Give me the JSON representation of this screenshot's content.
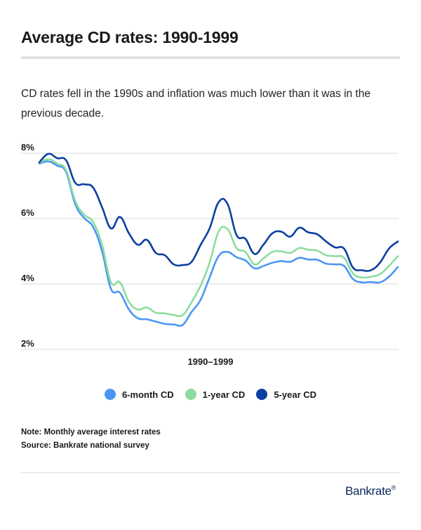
{
  "header": {
    "title": "Average CD rates: 1990-1999",
    "subtitle": "CD rates fell in the 1990s and inflation was much lower than it was in the previous decade."
  },
  "footer": {
    "note": "Note: Monthly average interest rates",
    "source": "Source: Bankrate national survey",
    "brand": "Bankrate",
    "brand_mark": "®"
  },
  "colors": {
    "six_month": "#4a97f3",
    "one_year": "#8cdca0",
    "five_year": "#0b3fa0",
    "gridline": "#d9d9d9"
  },
  "chart_data": {
    "type": "line",
    "title": "Average CD rates: 1990-1999",
    "xlabel": "1990–1999",
    "ylabel": "",
    "ylim": [
      2,
      8
    ],
    "yticks": [
      "8%",
      "6%",
      "4%",
      "2%"
    ],
    "ytick_values": [
      8,
      6,
      4,
      2
    ],
    "grid": true,
    "legend_position": "bottom",
    "x": [
      1990.0,
      1990.25,
      1990.5,
      1990.75,
      1991.0,
      1991.25,
      1991.5,
      1991.75,
      1992.0,
      1992.25,
      1992.5,
      1992.75,
      1993.0,
      1993.25,
      1993.5,
      1993.75,
      1994.0,
      1994.25,
      1994.5,
      1994.75,
      1995.0,
      1995.25,
      1995.5,
      1995.75,
      1996.0,
      1996.25,
      1996.5,
      1996.75,
      1997.0,
      1997.25,
      1997.5,
      1997.75,
      1998.0,
      1998.25,
      1998.5,
      1998.75,
      1999.0,
      1999.25,
      1999.5,
      1999.75,
      2000.0
    ],
    "series": [
      {
        "name": "6-month CD",
        "color_key": "six_month",
        "values": [
          7.68,
          7.75,
          7.62,
          7.42,
          6.45,
          6.02,
          5.75,
          5.0,
          3.85,
          3.73,
          3.22,
          2.95,
          2.92,
          2.85,
          2.78,
          2.76,
          2.75,
          3.15,
          3.52,
          4.2,
          4.85,
          4.98,
          4.82,
          4.72,
          4.48,
          4.55,
          4.65,
          4.7,
          4.68,
          4.8,
          4.75,
          4.74,
          4.62,
          4.6,
          4.55,
          4.15,
          4.05,
          4.06,
          4.05,
          4.22,
          4.52
        ]
      },
      {
        "name": "1-year CD",
        "color_key": "one_year",
        "values": [
          7.7,
          7.82,
          7.68,
          7.48,
          6.55,
          6.12,
          5.9,
          5.2,
          4.05,
          4.05,
          3.45,
          3.22,
          3.28,
          3.12,
          3.1,
          3.05,
          3.05,
          3.45,
          3.95,
          4.65,
          5.6,
          5.68,
          5.1,
          4.98,
          4.6,
          4.78,
          4.98,
          5.0,
          4.95,
          5.1,
          5.05,
          5.02,
          4.88,
          4.85,
          4.8,
          4.32,
          4.2,
          4.22,
          4.3,
          4.55,
          4.85
        ]
      },
      {
        "name": "5-year CD",
        "color_key": "five_year",
        "values": [
          7.72,
          7.98,
          7.85,
          7.78,
          7.1,
          7.05,
          6.95,
          6.35,
          5.7,
          6.05,
          5.55,
          5.2,
          5.35,
          4.95,
          4.88,
          4.6,
          4.58,
          4.68,
          5.2,
          5.7,
          6.5,
          6.45,
          5.5,
          5.38,
          4.92,
          5.2,
          5.55,
          5.6,
          5.45,
          5.72,
          5.58,
          5.52,
          5.3,
          5.12,
          5.08,
          4.5,
          4.42,
          4.42,
          4.65,
          5.08,
          5.3
        ]
      }
    ]
  }
}
